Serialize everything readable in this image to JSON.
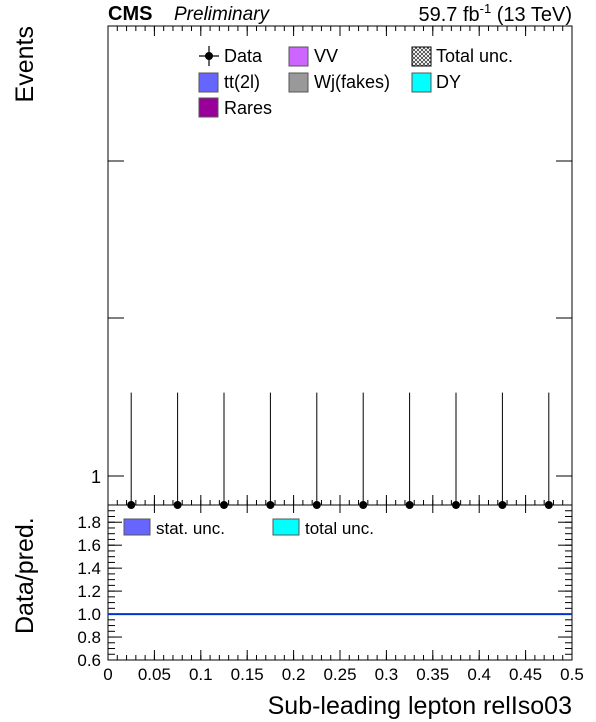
{
  "header": {
    "experiment": "CMS",
    "status": "Preliminary",
    "lumi_base": "59.7 fb",
    "lumi_exp": "-1",
    "lumi_rest": " (13 TeV)"
  },
  "chart_data": [
    {
      "type": "histogram",
      "panel": "main",
      "ylabel": "Events",
      "yscale": "log",
      "y_tick_labels": [
        "1"
      ],
      "legend": {
        "placement": "top-center",
        "entries": [
          {
            "label": "Data",
            "style": "marker",
            "color": "#000000"
          },
          {
            "label": "VV",
            "style": "box",
            "color": "#cc66ff"
          },
          {
            "label": "Total unc.",
            "style": "hatched",
            "color": "#ffffff"
          },
          {
            "label": "tt(2l)",
            "style": "box",
            "color": "#6666ff"
          },
          {
            "label": "Wj(fakes)",
            "style": "box",
            "color": "#999999"
          },
          {
            "label": "DY",
            "style": "box",
            "color": "#00ffff"
          },
          {
            "label": "Rares",
            "style": "box",
            "color": "#990099"
          }
        ]
      },
      "xlim": [
        0,
        0.5
      ],
      "bin_width": 0.05,
      "data_points": {
        "x": [
          0.025,
          0.075,
          0.125,
          0.175,
          0.225,
          0.275,
          0.325,
          0.375,
          0.425,
          0.475
        ],
        "y": [
          0,
          0,
          0,
          0,
          0,
          0,
          0,
          0,
          0,
          0
        ],
        "y_err_up": [
          1.84,
          1.84,
          1.84,
          1.84,
          1.84,
          1.84,
          1.84,
          1.84,
          1.84,
          1.84
        ]
      },
      "stacked_series": []
    },
    {
      "type": "ratio",
      "panel": "ratio",
      "ylabel": "Data/pred.",
      "xlabel": "Sub-leading lepton relIso03",
      "xlim": [
        0,
        0.5
      ],
      "ylim": [
        0.6,
        1.95
      ],
      "x_ticks": [
        "0",
        "0.05",
        "0.1",
        "0.15",
        "0.2",
        "0.25",
        "0.3",
        "0.35",
        "0.4",
        "0.45",
        "0.5"
      ],
      "x_tick_values": [
        0,
        0.05,
        0.1,
        0.15,
        0.2,
        0.25,
        0.3,
        0.35,
        0.4,
        0.45,
        0.5
      ],
      "y_ticks": [
        "0.6",
        "0.8",
        "1.0",
        "1.2",
        "1.4",
        "1.6",
        "1.8"
      ],
      "y_tick_values": [
        0.6,
        0.8,
        1.0,
        1.2,
        1.4,
        1.6,
        1.8
      ],
      "reference_line": 1.0,
      "reference_color": "#0033cc",
      "legend": {
        "placement": "top-left",
        "entries": [
          {
            "label": "stat. unc.",
            "color": "#6666ff"
          },
          {
            "label": "total unc.",
            "color": "#00ffff"
          }
        ]
      }
    }
  ]
}
